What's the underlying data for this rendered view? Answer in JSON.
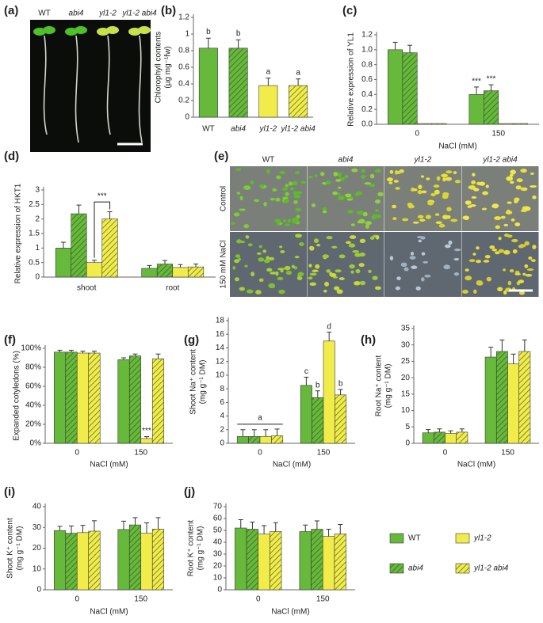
{
  "chart_data": [
    {
      "panel": "(b)",
      "type": "bar",
      "y_label": [
        "Chlorophyll contents",
        "(µg mg⁻¹fw)"
      ],
      "categories": [
        "WT",
        "abi4",
        "yl1-2",
        "yl1-2 abi4"
      ],
      "values": [
        0.83,
        0.83,
        0.38,
        0.38
      ],
      "errors": [
        0.12,
        0.1,
        0.09,
        0.08
      ],
      "annotations": [
        "b",
        "b",
        "a",
        "a"
      ],
      "colors": [
        "#66b93a",
        "#66b93a",
        "#f2ec4a",
        "#f2ec4a"
      ],
      "hatched": [
        false,
        true,
        false,
        true
      ],
      "ylim": [
        0,
        1.2
      ],
      "yticks": [
        0,
        0.2,
        0.4,
        0.6,
        0.8,
        1,
        1.2
      ]
    },
    {
      "panel": "(c)",
      "type": "grouped_bar",
      "y_label": [
        "Relative expression of YL1"
      ],
      "x_label": "NaCl (mM)",
      "categories": [
        "0",
        "150"
      ],
      "series": [
        {
          "name": "WT",
          "color": "#66b93a",
          "hatched": false,
          "values": [
            1.0,
            0.4
          ],
          "errors": [
            0.1,
            0.1
          ],
          "annotations": [
            null,
            "***"
          ]
        },
        {
          "name": "abi4",
          "color": "#66b93a",
          "hatched": true,
          "values": [
            0.96,
            0.45
          ],
          "errors": [
            0.1,
            0.08
          ],
          "annotations": [
            null,
            "***"
          ]
        },
        {
          "name": "yl1-2",
          "color": "#f2ec4a",
          "hatched": false,
          "values": [
            0.01,
            0.01
          ],
          "errors": [
            0,
            0
          ]
        },
        {
          "name": "yl1-2 abi4",
          "color": "#f2ec4a",
          "hatched": true,
          "values": [
            0.01,
            0.01
          ],
          "errors": [
            0,
            0
          ]
        }
      ],
      "ylim": [
        0,
        1.2
      ],
      "yticks": [
        {
          "value": 0,
          "label": "0.0"
        },
        0.2,
        0.4,
        0.6,
        0.8,
        {
          "value": 1,
          "label": "1.0"
        },
        1.2
      ]
    },
    {
      "panel": "(d)",
      "type": "grouped_bar",
      "y_label": [
        "Relative expression of HKT1"
      ],
      "categories": [
        "shoot",
        "root"
      ],
      "series": [
        {
          "name": "WT",
          "color": "#66b93a",
          "hatched": false,
          "values": [
            1.0,
            0.3
          ],
          "errors": [
            0.2,
            0.1
          ]
        },
        {
          "name": "abi4",
          "color": "#66b93a",
          "hatched": true,
          "values": [
            2.18,
            0.45
          ],
          "errors": [
            0.3,
            0.12
          ]
        },
        {
          "name": "yl1-2",
          "color": "#f2ec4a",
          "hatched": false,
          "values": [
            0.5,
            0.33
          ],
          "errors": [
            0.08,
            0.1
          ]
        },
        {
          "name": "yl1-2 abi4",
          "color": "#f2ec4a",
          "hatched": true,
          "values": [
            2.0,
            0.35
          ],
          "errors": [
            0.25,
            0.1
          ]
        }
      ],
      "bracket_annotation": "***",
      "ylim": [
        0,
        3
      ],
      "yticks": [
        0,
        0.5,
        1,
        1.5,
        2,
        2.5,
        3
      ]
    },
    {
      "panel": "(f)",
      "type": "grouped_bar",
      "y_label": [
        "Expanded cotyledons (%)"
      ],
      "x_label": "NaCl (mM)",
      "categories": [
        "0",
        "150"
      ],
      "series": [
        {
          "name": "WT",
          "color": "#66b93a",
          "hatched": false,
          "values": [
            96,
            88
          ],
          "errors": [
            2,
            2
          ]
        },
        {
          "name": "abi4",
          "color": "#66b93a",
          "hatched": true,
          "values": [
            96,
            92
          ],
          "errors": [
            2,
            2
          ]
        },
        {
          "name": "yl1-2",
          "color": "#f2ec4a",
          "hatched": false,
          "values": [
            95,
            5
          ],
          "errors": [
            2,
            2
          ],
          "annotations": [
            null,
            "***"
          ]
        },
        {
          "name": "yl1-2 abi4",
          "color": "#f2ec4a",
          "hatched": true,
          "values": [
            95,
            89
          ],
          "errors": [
            2,
            5
          ]
        }
      ],
      "ylim": [
        0,
        100
      ],
      "yticks": [
        {
          "value": 0,
          "label": "0%"
        },
        {
          "value": 20,
          "label": "20%"
        },
        {
          "value": 40,
          "label": "40%"
        },
        {
          "value": 60,
          "label": "60%"
        },
        {
          "value": 80,
          "label": "80%"
        },
        {
          "value": 100,
          "label": "100%"
        }
      ]
    },
    {
      "panel": "(g)",
      "type": "grouped_bar",
      "y_label": [
        "Shoot Na⁺ content",
        "(mg g⁻¹ DM)"
      ],
      "x_label": "NaCl (mM)",
      "categories": [
        "0",
        "150"
      ],
      "series": [
        {
          "name": "WT",
          "color": "#66b93a",
          "hatched": false,
          "values": [
            1,
            8.5
          ],
          "errors": [
            1,
            1.2
          ],
          "annotations": [
            null,
            "c"
          ]
        },
        {
          "name": "abi4",
          "color": "#66b93a",
          "hatched": true,
          "values": [
            1,
            6.7
          ],
          "errors": [
            1,
            1
          ],
          "annotations": [
            null,
            "b"
          ]
        },
        {
          "name": "yl1-2",
          "color": "#f2ec4a",
          "hatched": false,
          "values": [
            1,
            15
          ],
          "errors": [
            1,
            1.3
          ],
          "annotations": [
            null,
            "d"
          ]
        },
        {
          "name": "yl1-2 abi4",
          "color": "#f2ec4a",
          "hatched": true,
          "values": [
            1.1,
            7.1
          ],
          "errors": [
            1,
            0.8
          ],
          "annotations": [
            null,
            "b"
          ]
        }
      ],
      "category_annotations": [
        "a",
        null
      ],
      "ylim": [
        0,
        18
      ],
      "yticks": [
        0,
        2,
        4,
        6,
        8,
        10,
        12,
        14,
        16,
        18
      ]
    },
    {
      "panel": "(h)",
      "type": "grouped_bar",
      "y_label": [
        "Root Na⁺ content",
        "(mg g⁻¹ DM)"
      ],
      "x_label": "NaCl (mM)",
      "categories": [
        "0",
        "150"
      ],
      "series": [
        {
          "name": "WT",
          "color": "#66b93a",
          "hatched": false,
          "values": [
            3.2,
            26.3
          ],
          "errors": [
            1,
            3
          ]
        },
        {
          "name": "abi4",
          "color": "#66b93a",
          "hatched": true,
          "values": [
            3.4,
            28
          ],
          "errors": [
            1,
            3.5
          ]
        },
        {
          "name": "yl1-2",
          "color": "#f2ec4a",
          "hatched": false,
          "values": [
            3.0,
            24.2
          ],
          "errors": [
            0.8,
            3
          ]
        },
        {
          "name": "yl1-2 abi4",
          "color": "#f2ec4a",
          "hatched": true,
          "values": [
            3.4,
            28
          ],
          "errors": [
            1,
            3.5
          ]
        }
      ],
      "ylim": [
        0,
        35
      ],
      "yticks": [
        0,
        5,
        10,
        15,
        20,
        25,
        30,
        35
      ]
    },
    {
      "panel": "(i)",
      "type": "grouped_bar",
      "y_label": [
        "Shoot K⁺ content",
        "(mg g⁻¹ DM)"
      ],
      "x_label": "NaCl (mM)",
      "categories": [
        "0",
        "150"
      ],
      "series": [
        {
          "name": "WT",
          "color": "#66b93a",
          "hatched": false,
          "values": [
            28.5,
            29
          ],
          "errors": [
            2,
            4
          ]
        },
        {
          "name": "abi4",
          "color": "#66b93a",
          "hatched": true,
          "values": [
            27.2,
            31.2
          ],
          "errors": [
            3.5,
            3.5
          ]
        },
        {
          "name": "yl1-2",
          "color": "#f2ec4a",
          "hatched": false,
          "values": [
            27.5,
            27.2
          ],
          "errors": [
            3.5,
            5
          ]
        },
        {
          "name": "yl1-2 abi4",
          "color": "#f2ec4a",
          "hatched": true,
          "values": [
            28.2,
            29.2
          ],
          "errors": [
            5,
            5.5
          ]
        }
      ],
      "ylim": [
        0,
        40
      ],
      "yticks": [
        0,
        10,
        20,
        30,
        40
      ]
    },
    {
      "panel": "(j)",
      "type": "grouped_bar",
      "y_label": [
        "Root K⁺ content",
        "(mg g⁻¹ DM)"
      ],
      "x_label": "NaCl (mM)",
      "categories": [
        "0",
        "150"
      ],
      "series": [
        {
          "name": "WT",
          "color": "#66b93a",
          "hatched": false,
          "values": [
            52,
            49
          ],
          "errors": [
            7,
            5.5
          ]
        },
        {
          "name": "abi4",
          "color": "#66b93a",
          "hatched": true,
          "values": [
            51,
            51
          ],
          "errors": [
            6,
            7
          ]
        },
        {
          "name": "yl1-2",
          "color": "#f2ec4a",
          "hatched": false,
          "values": [
            47,
            45
          ],
          "errors": [
            7,
            6
          ]
        },
        {
          "name": "yl1-2 abi4",
          "color": "#f2ec4a",
          "hatched": true,
          "values": [
            49,
            47
          ],
          "errors": [
            7.5,
            8
          ]
        }
      ],
      "ylim": [
        0,
        70
      ],
      "yticks": [
        0,
        10,
        20,
        30,
        40,
        50,
        60,
        70
      ]
    }
  ],
  "photos": [
    {
      "panel": "(a)",
      "column_labels": [
        "WT",
        "abi4",
        "yl1-2",
        "yl1-2 abi4"
      ]
    },
    {
      "panel": "(e)",
      "column_labels": [
        "WT",
        "abi4",
        "yl1-2",
        "yl1-2 abi4"
      ],
      "row_labels": [
        "Control",
        "150 mM NaCl"
      ]
    }
  ]
}
